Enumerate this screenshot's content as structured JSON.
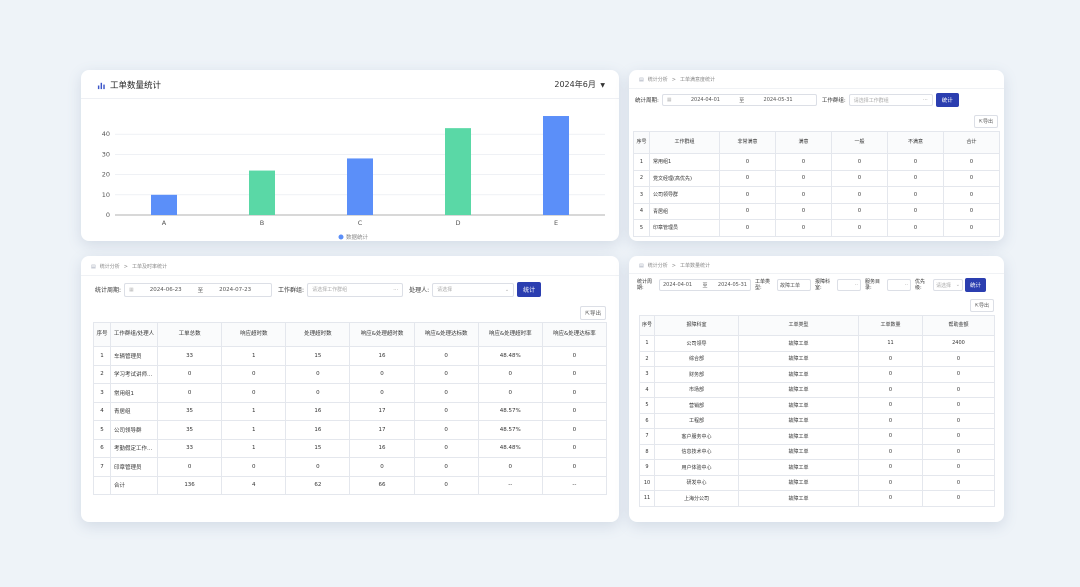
{
  "chart_panel": {
    "title": "工单数量统计",
    "month_selector": "2024年6月",
    "legend": "数据统计",
    "chart_data": {
      "type": "bar",
      "categories": [
        "A",
        "B",
        "C",
        "D",
        "E"
      ],
      "values": [
        10,
        22,
        28,
        43,
        49
      ],
      "bar_colors": [
        "#5b8ff9",
        "#5ad8a6",
        "#5b8ff9",
        "#5ad8a6",
        "#5b8ff9"
      ],
      "yticks": [
        0,
        10,
        20,
        30,
        40
      ],
      "ylim": [
        0,
        50
      ],
      "legend_position": "bottom"
    }
  },
  "group_panel": {
    "breadcrumb": [
      "统计分析",
      "工单满意度统计"
    ],
    "filter": {
      "period_label": "统计周期:",
      "start_date": "2024-04-01",
      "to": "至",
      "end_date": "2024-05-31",
      "group_label": "工作群组:",
      "group_placeholder": "请选择工作群组",
      "stat_button": "统计"
    },
    "export_button": "导出",
    "table": {
      "headers": [
        "序号",
        "工作群组",
        "非常满意",
        "满意",
        "一般",
        "不满意",
        "合计"
      ],
      "rows": [
        [
          "1",
          "常用组1",
          "0",
          "0",
          "0",
          "0",
          "0"
        ],
        [
          "2",
          "党文经理(高优先)",
          "0",
          "0",
          "0",
          "0",
          "0"
        ],
        [
          "3",
          "公司领导群",
          "0",
          "0",
          "0",
          "0",
          "0"
        ],
        [
          "4",
          "青居组",
          "0",
          "0",
          "0",
          "0",
          "0"
        ],
        [
          "5",
          "印章管理员",
          "0",
          "0",
          "0",
          "0",
          "0"
        ]
      ]
    }
  },
  "timeliness_panel": {
    "breadcrumb": [
      "统计分析",
      "工单及时率统计"
    ],
    "filter": {
      "period_label": "统计周期:",
      "start_date": "2024-06-23",
      "to": "至",
      "end_date": "2024-07-23",
      "group_label": "工作群组:",
      "group_placeholder": "请选择工作群组",
      "handler_label": "处理人:",
      "handler_placeholder": "请选择",
      "stat_button": "统计"
    },
    "export_button": "导出",
    "table": {
      "headers": [
        "序号",
        "工作群组/处理人",
        "工单总数",
        "响应超时数",
        "处理超时数",
        "响应&处理超时数",
        "响应&处理达标数",
        "响应&处理超时率",
        "响应&处理达标率"
      ],
      "rows": [
        [
          "1",
          "车辆管理员",
          "33",
          "1",
          "15",
          "16",
          "0",
          "48.48%",
          "0"
        ],
        [
          "2",
          "学习考试讲师...",
          "0",
          "0",
          "0",
          "0",
          "0",
          "0",
          "0"
        ],
        [
          "3",
          "常用组1",
          "0",
          "0",
          "0",
          "0",
          "0",
          "0",
          "0"
        ],
        [
          "4",
          "青居组",
          "35",
          "1",
          "16",
          "17",
          "0",
          "48.57%",
          "0"
        ],
        [
          "5",
          "公司领导群",
          "35",
          "1",
          "16",
          "17",
          "0",
          "48.57%",
          "0"
        ],
        [
          "6",
          "考勤假定工作...",
          "33",
          "1",
          "15",
          "16",
          "0",
          "48.48%",
          "0"
        ],
        [
          "7",
          "印章管理员",
          "0",
          "0",
          "0",
          "0",
          "0",
          "0",
          "0"
        ],
        [
          "",
          "合计",
          "136",
          "4",
          "62",
          "66",
          "0",
          "--",
          "--"
        ]
      ]
    }
  },
  "amount_panel": {
    "breadcrumb": [
      "统计分析",
      "工单数量统计"
    ],
    "filter": {
      "period_label": "统计周期:",
      "start_date": "2024-04-01",
      "to": "至",
      "end_date": "2024-05-31",
      "type_label": "工单类型:",
      "type_value": "故障工单",
      "dept_label": "报障科室:",
      "catalog_label": "服务目录:",
      "priority_label": "优先级:",
      "priority_placeholder": "请选择",
      "stat_button": "统计"
    },
    "export_button": "导出",
    "table": {
      "headers": [
        "序号",
        "报障科室",
        "工单类型",
        "工单数量",
        "帮助金额"
      ],
      "rows": [
        [
          "1",
          "公司领导",
          "故障工单",
          "11",
          "2400"
        ],
        [
          "2",
          "综合部",
          "故障工单",
          "0",
          "0"
        ],
        [
          "3",
          "财务部",
          "故障工单",
          "0",
          "0"
        ],
        [
          "4",
          "市场部",
          "故障工单",
          "0",
          "0"
        ],
        [
          "5",
          "营销部",
          "故障工单",
          "0",
          "0"
        ],
        [
          "6",
          "工程部",
          "故障工单",
          "0",
          "0"
        ],
        [
          "7",
          "客户服务中心",
          "故障工单",
          "0",
          "0"
        ],
        [
          "8",
          "信息技术中心",
          "故障工单",
          "0",
          "0"
        ],
        [
          "9",
          "用户体验中心",
          "故障工单",
          "0",
          "0"
        ],
        [
          "10",
          "研发中心",
          "故障工单",
          "0",
          "0"
        ],
        [
          "11",
          "上海分公司",
          "故障工单",
          "0",
          "0"
        ]
      ]
    }
  }
}
